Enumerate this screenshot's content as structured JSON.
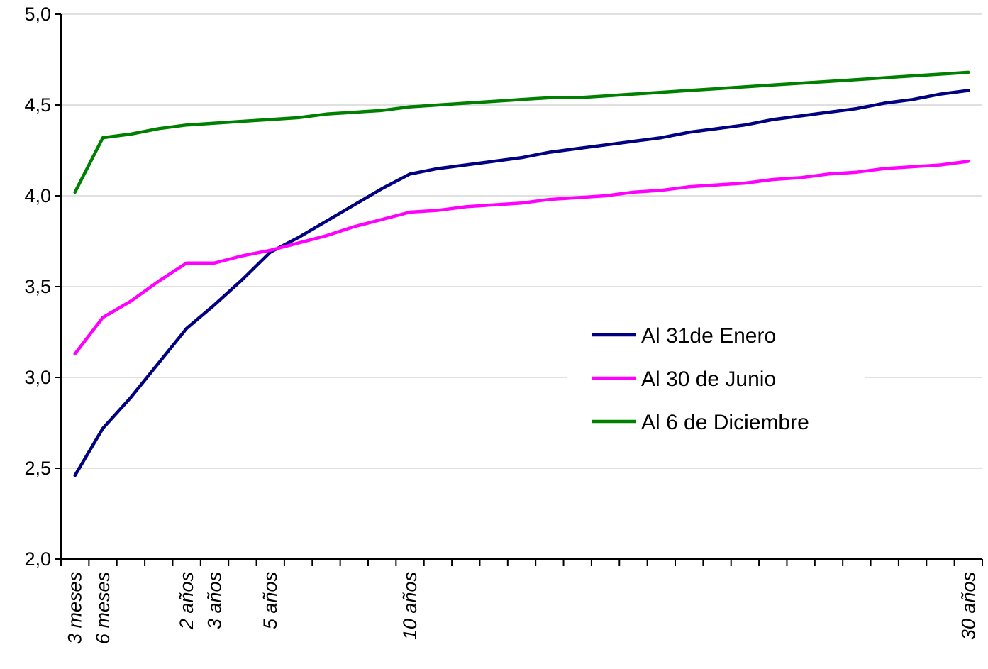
{
  "chart_data": {
    "type": "line",
    "title": "",
    "xlabel": "",
    "ylabel": "",
    "ylim": [
      2.0,
      5.0
    ],
    "y_ticks": [
      "2,0",
      "2,5",
      "3,0",
      "3,5",
      "4,0",
      "4,5",
      "5,0"
    ],
    "grid": "horizontal",
    "legend_position": "center-right",
    "x_labels": [
      "3 meses",
      "6 meses",
      "2 años",
      "3 años",
      "5 años",
      "10 años",
      "30 años"
    ],
    "x_label_positions": [
      0.25,
      0.5,
      2,
      3,
      5,
      10,
      30
    ],
    "x": [
      0.25,
      0.5,
      1,
      1.5,
      2,
      3,
      4,
      5,
      6,
      7,
      8,
      9,
      10,
      11,
      12,
      13,
      14,
      15,
      16,
      17,
      18,
      19,
      20,
      21,
      22,
      23,
      24,
      25,
      26,
      27,
      28,
      29,
      30
    ],
    "series": [
      {
        "name": "Al 31de Enero",
        "color": "#000080",
        "values": [
          2.46,
          2.72,
          2.89,
          3.08,
          3.27,
          3.4,
          3.54,
          3.69,
          3.77,
          3.86,
          3.95,
          4.04,
          4.12,
          4.15,
          4.17,
          4.19,
          4.21,
          4.24,
          4.26,
          4.28,
          4.3,
          4.32,
          4.35,
          4.37,
          4.39,
          4.42,
          4.44,
          4.46,
          4.48,
          4.51,
          4.53,
          4.56,
          4.58
        ]
      },
      {
        "name": "Al 30 de Junio",
        "color": "#ff00ff",
        "values": [
          3.13,
          3.33,
          3.42,
          3.53,
          3.63,
          3.63,
          3.67,
          3.7,
          3.74,
          3.78,
          3.83,
          3.87,
          3.91,
          3.92,
          3.94,
          3.95,
          3.96,
          3.98,
          3.99,
          4.0,
          4.02,
          4.03,
          4.05,
          4.06,
          4.07,
          4.09,
          4.1,
          4.12,
          4.13,
          4.15,
          4.16,
          4.17,
          4.19
        ]
      },
      {
        "name": "Al 6 de Diciembre",
        "color": "#008000",
        "values": [
          4.02,
          4.32,
          4.34,
          4.37,
          4.39,
          4.4,
          4.41,
          4.42,
          4.43,
          4.45,
          4.46,
          4.47,
          4.49,
          4.5,
          4.51,
          4.52,
          4.53,
          4.54,
          4.54,
          4.55,
          4.56,
          4.57,
          4.58,
          4.59,
          4.6,
          4.61,
          4.62,
          4.63,
          4.64,
          4.65,
          4.66,
          4.67,
          4.68
        ]
      }
    ]
  }
}
